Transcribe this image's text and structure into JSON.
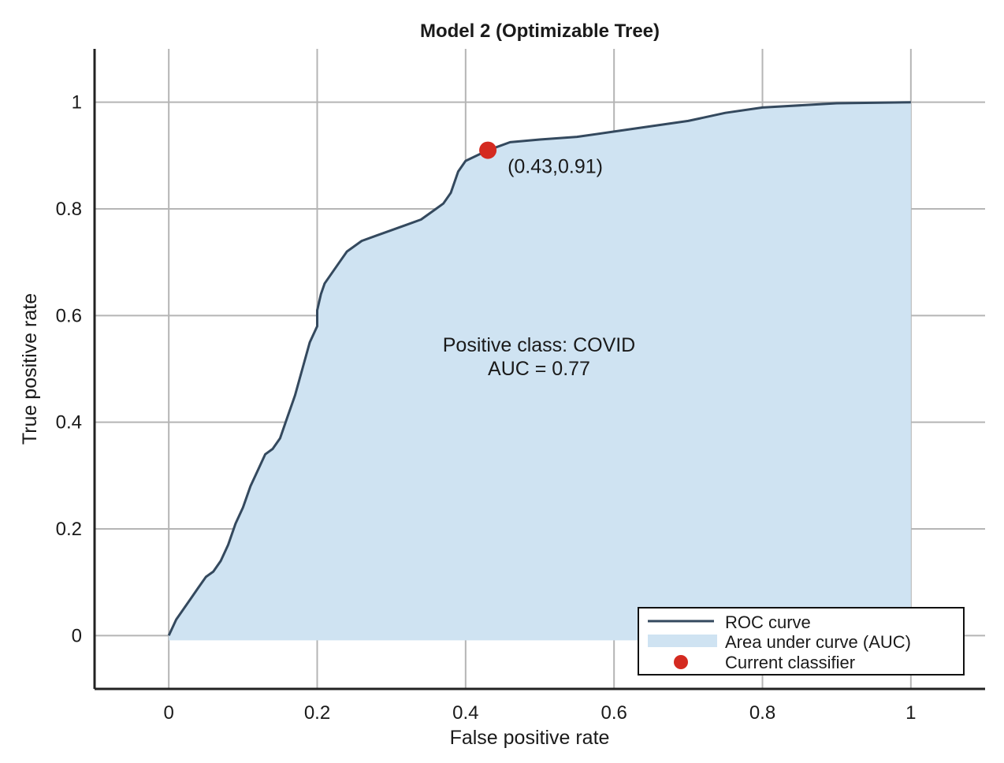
{
  "chart_data": {
    "type": "area",
    "title": "Model 2 (Optimizable Tree)",
    "xlabel": "False positive rate",
    "ylabel": "True positive rate",
    "xlim": [
      -0.1,
      1.1
    ],
    "ylim": [
      -0.1,
      1.1
    ],
    "xticks": [
      0,
      0.2,
      0.4,
      0.6,
      0.8,
      1
    ],
    "yticks": [
      0,
      0.2,
      0.4,
      0.6,
      0.8,
      1
    ],
    "xtick_labels": [
      "0",
      "0.2",
      "0.4",
      "0.6",
      "0.8",
      "1"
    ],
    "ytick_labels": [
      "0",
      "0.2",
      "0.4",
      "0.6",
      "0.8",
      "1"
    ],
    "grid": true,
    "series": [
      {
        "name": "ROC curve",
        "x": [
          0,
          0.01,
          0.02,
          0.03,
          0.04,
          0.05,
          0.06,
          0.07,
          0.08,
          0.085,
          0.09,
          0.1,
          0.11,
          0.12,
          0.13,
          0.14,
          0.15,
          0.16,
          0.17,
          0.18,
          0.19,
          0.2,
          0.2,
          0.205,
          0.21,
          0.22,
          0.23,
          0.24,
          0.25,
          0.26,
          0.28,
          0.3,
          0.32,
          0.34,
          0.36,
          0.37,
          0.38,
          0.39,
          0.4,
          0.43,
          0.46,
          0.5,
          0.55,
          0.6,
          0.65,
          0.7,
          0.75,
          0.8,
          0.9,
          1.0
        ],
        "y": [
          0,
          0.03,
          0.05,
          0.07,
          0.09,
          0.11,
          0.12,
          0.14,
          0.17,
          0.19,
          0.21,
          0.24,
          0.28,
          0.31,
          0.34,
          0.35,
          0.37,
          0.41,
          0.45,
          0.5,
          0.55,
          0.58,
          0.61,
          0.64,
          0.66,
          0.68,
          0.7,
          0.72,
          0.73,
          0.74,
          0.75,
          0.76,
          0.77,
          0.78,
          0.8,
          0.81,
          0.83,
          0.87,
          0.89,
          0.91,
          0.925,
          0.93,
          0.935,
          0.945,
          0.955,
          0.965,
          0.98,
          0.99,
          0.998,
          1.0
        ]
      }
    ],
    "auc_fill_label": "Area under curve (AUC)",
    "current_classifier": {
      "label": "Current classifier",
      "x": 0.43,
      "y": 0.91,
      "text": "(0.43,0.91)"
    },
    "annotation_lines": [
      "Positive class: COVID",
      "AUC = 0.77"
    ],
    "legend": {
      "placement": "bottom-right",
      "entries": [
        "ROC curve",
        "Area under curve (AUC)",
        "Current classifier"
      ]
    },
    "colors": {
      "curve": "#34495e",
      "fill": "#cfe3f2",
      "point": "#d42a20",
      "grid": "#b5b5b5",
      "axis": "#222222"
    }
  }
}
